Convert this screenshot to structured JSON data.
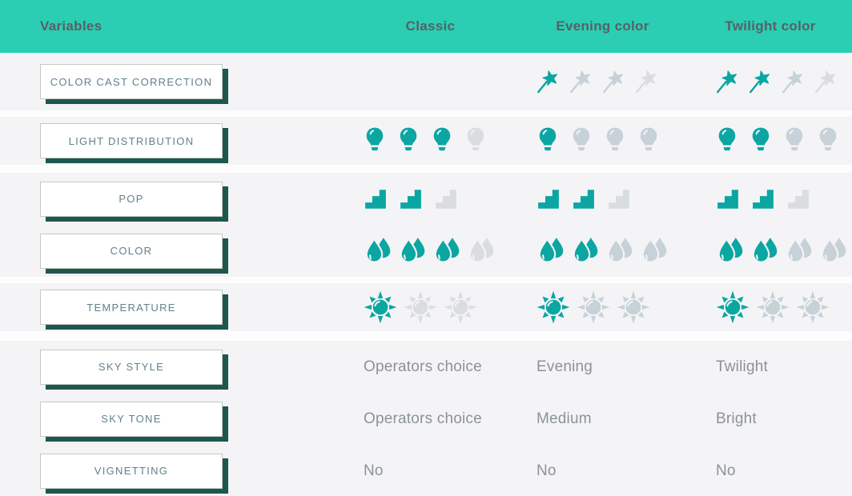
{
  "header": {
    "columns": [
      "Variables",
      "Classic",
      "Evening color",
      "Twilight color"
    ]
  },
  "colors": {
    "header_bg": "#2bceb3",
    "header_text": "#576165",
    "band_bg": "#f4f4f6",
    "gap_bg": "#fdfdfd",
    "button_bg": "#ffffff",
    "button_border": "#c4c9c0",
    "button_shadow": "#1d574e",
    "button_text": "#62808a",
    "value_text": "#8b9299",
    "icon_on": "#0ba6a2",
    "icon_mid": "#c7d1d8",
    "icon_off": "#dadddf"
  },
  "rows": [
    {
      "id": "color-cast-correction",
      "label": "COLOR CAST CORRECTION",
      "icon": "wand",
      "cells": {
        "classic": {
          "type": "empty"
        },
        "evening": {
          "type": "icons",
          "states": [
            "on",
            "mid",
            "mid",
            "off"
          ]
        },
        "twilight": {
          "type": "icons",
          "states": [
            "on",
            "on",
            "mid",
            "off"
          ]
        }
      }
    },
    {
      "id": "light-distribution",
      "label": "LIGHT DISTRIBUTION",
      "icon": "bulb",
      "cells": {
        "classic": {
          "type": "icons",
          "states": [
            "on",
            "on",
            "on",
            "off"
          ]
        },
        "evening": {
          "type": "icons",
          "states": [
            "on",
            "mid",
            "mid",
            "mid"
          ]
        },
        "twilight": {
          "type": "icons",
          "states": [
            "on",
            "on",
            "mid",
            "mid"
          ]
        }
      }
    },
    {
      "id": "pop",
      "label": "POP",
      "icon": "stairs",
      "cells": {
        "classic": {
          "type": "icons",
          "states": [
            "on",
            "on",
            "off"
          ]
        },
        "evening": {
          "type": "icons",
          "states": [
            "on",
            "on",
            "off"
          ]
        },
        "twilight": {
          "type": "icons",
          "states": [
            "on",
            "on",
            "off"
          ]
        }
      }
    },
    {
      "id": "color",
      "label": "COLOR",
      "icon": "drop",
      "cells": {
        "classic": {
          "type": "icons",
          "states": [
            "on",
            "on",
            "on",
            "off"
          ]
        },
        "evening": {
          "type": "icons",
          "states": [
            "on",
            "on",
            "mid",
            "mid"
          ]
        },
        "twilight": {
          "type": "icons",
          "states": [
            "on",
            "on",
            "mid",
            "mid"
          ]
        }
      }
    },
    {
      "id": "temperature",
      "label": "TEMPERATURE",
      "icon": "sun",
      "cells": {
        "classic": {
          "type": "icons",
          "states": [
            "on",
            "off",
            "off"
          ]
        },
        "evening": {
          "type": "icons",
          "states": [
            "on",
            "mid",
            "mid"
          ]
        },
        "twilight": {
          "type": "icons",
          "states": [
            "on",
            "mid",
            "mid"
          ]
        }
      }
    },
    {
      "id": "sky-style",
      "label": "SKY STYLE",
      "cells": {
        "classic": {
          "type": "text",
          "value": "Operators choice"
        },
        "evening": {
          "type": "text",
          "value": "Evening"
        },
        "twilight": {
          "type": "text",
          "value": "Twilight"
        }
      }
    },
    {
      "id": "sky-tone",
      "label": "SKY TONE",
      "cells": {
        "classic": {
          "type": "text",
          "value": "Operators choice"
        },
        "evening": {
          "type": "text",
          "value": "Medium"
        },
        "twilight": {
          "type": "text",
          "value": "Bright"
        }
      }
    },
    {
      "id": "vignetting",
      "label": "VIGNETTING",
      "cells": {
        "classic": {
          "type": "text",
          "value": "No"
        },
        "evening": {
          "type": "text",
          "value": "No"
        },
        "twilight": {
          "type": "text",
          "value": "No"
        }
      }
    }
  ]
}
